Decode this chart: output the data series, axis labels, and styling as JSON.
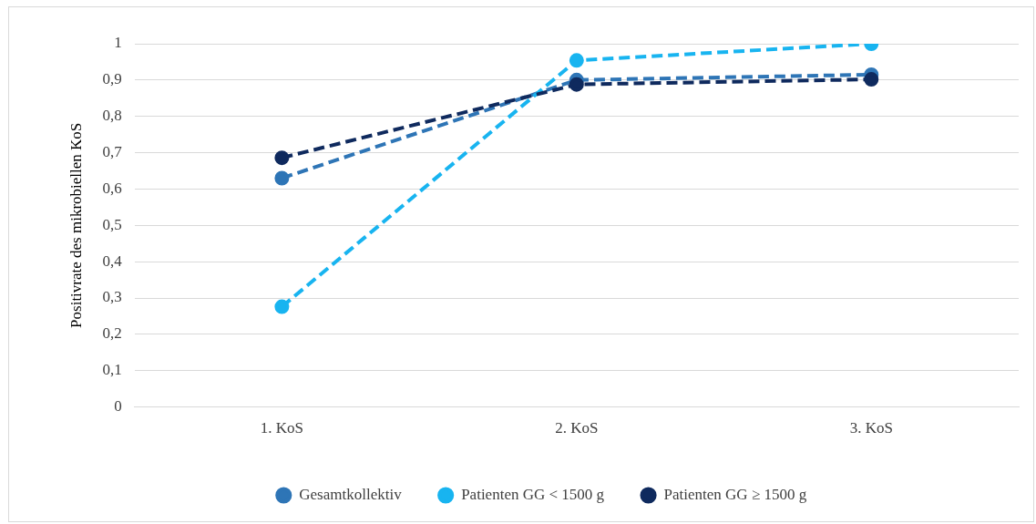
{
  "chart_data": {
    "type": "line",
    "ylabel": "Positivrate des mikrobiellen KoS",
    "categories": [
      "1. KoS",
      "2. KoS",
      "3. KoS"
    ],
    "series": [
      {
        "name": "Gesamtkollektiv",
        "color": "#2e75b6",
        "values": [
          0.63,
          0.9,
          0.915
        ]
      },
      {
        "name": "Patienten GG < 1500 g",
        "color": "#18b4f0",
        "values": [
          0.276,
          0.954,
          1.0
        ]
      },
      {
        "name": "Patienten GG ≥ 1500 g",
        "color": "#0f2a5e",
        "values": [
          0.686,
          0.888,
          0.902
        ]
      }
    ],
    "ylim": [
      0,
      1
    ],
    "yticks": [
      0,
      {
        "value": 0.1,
        "label": "0,1"
      },
      {
        "value": 0.2,
        "label": "0,2"
      },
      {
        "value": 0.3,
        "label": "0,3"
      },
      {
        "value": 0.4,
        "label": "0,4"
      },
      {
        "value": 0.5,
        "label": "0,5"
      },
      {
        "value": 0.6,
        "label": "0,6"
      },
      {
        "value": 0.7,
        "label": "0,7"
      },
      {
        "value": 0.8,
        "label": "0,8"
      },
      {
        "value": 0.9,
        "label": "0,9"
      },
      1
    ],
    "grid": "y",
    "legend": "bottom",
    "marker": "circle",
    "line_style": "dashed"
  }
}
